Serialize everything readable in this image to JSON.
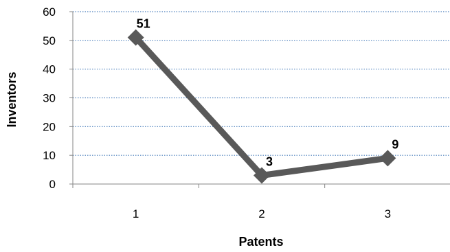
{
  "chart_data": {
    "type": "line",
    "title": "",
    "xlabel": "Patents",
    "ylabel": "Inventors",
    "categories": [
      "1",
      "2",
      "3"
    ],
    "y_ticks": [
      "0",
      "10",
      "20",
      "30",
      "40",
      "50",
      "60"
    ],
    "ylim": [
      0,
      60
    ],
    "grid": true,
    "legend": "none",
    "series": [
      {
        "values": [
          51,
          3,
          9
        ],
        "data_labels": [
          "51",
          "3",
          "9"
        ],
        "marker": "diamond"
      }
    ],
    "colors": {
      "line": "#595959",
      "grid": "#4f81bd",
      "axis": "#868686"
    }
  }
}
